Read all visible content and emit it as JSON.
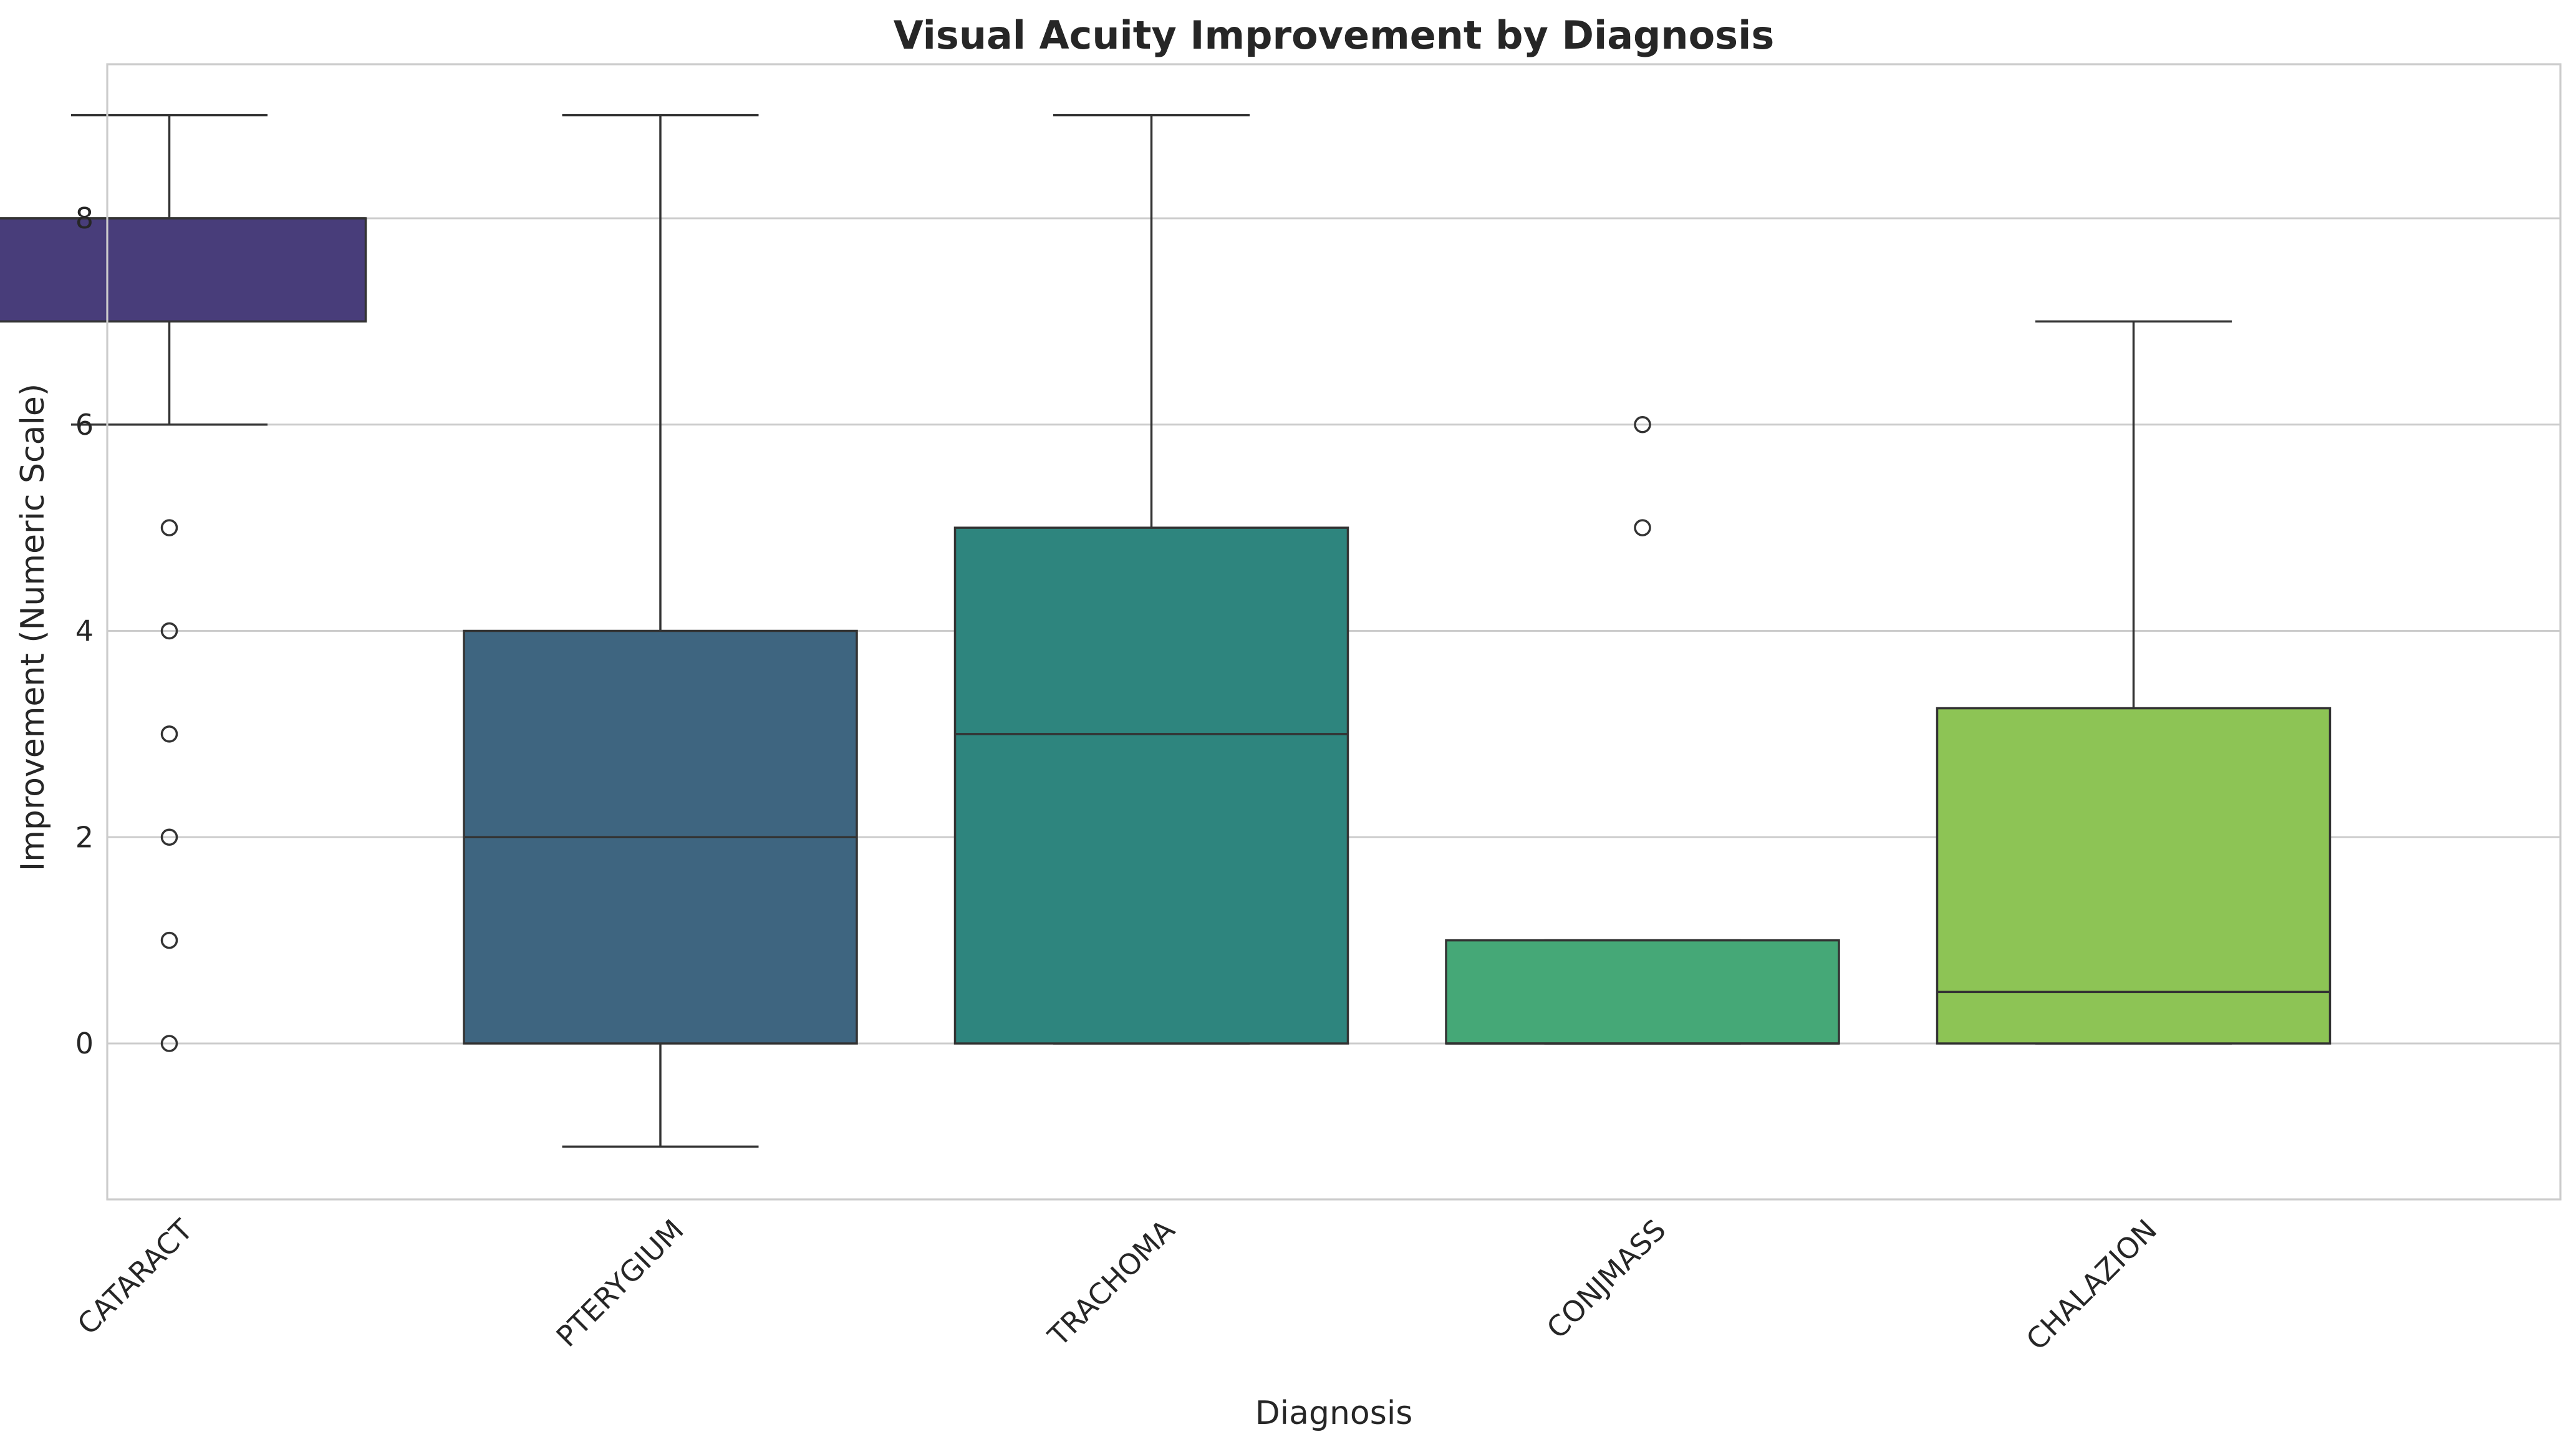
{
  "chart_data": {
    "type": "boxplot",
    "title": "Visual Acuity Improvement by Diagnosis",
    "xlabel": "Diagnosis",
    "ylabel": "Improvement (Numeric Scale)",
    "ylim": [
      -1.5,
      9.5
    ],
    "yticks": [
      0,
      2,
      4,
      6,
      8
    ],
    "grid": true,
    "categories": [
      "CATARACT",
      "PTERYGIUM",
      "TRACHOMA",
      "CONJMASS",
      "CHALAZION"
    ],
    "boxes": [
      {
        "category": "CATARACT",
        "color": "#483d7a",
        "whisker_low": 6,
        "q1": 7,
        "median": 8,
        "q3": 8,
        "whisker_high": 9,
        "outliers": [
          5,
          4,
          3,
          2,
          1,
          0
        ]
      },
      {
        "category": "PTERYGIUM",
        "color": "#3e6580",
        "whisker_low": -1,
        "q1": 0,
        "median": 2,
        "q3": 4,
        "whisker_high": 9,
        "outliers": []
      },
      {
        "category": "TRACHOMA",
        "color": "#2e857e",
        "whisker_low": 0,
        "q1": 0,
        "median": 3,
        "q3": 5,
        "whisker_high": 9,
        "outliers": []
      },
      {
        "category": "CONJMASS",
        "color": "#45a877",
        "whisker_low": 0,
        "q1": 0,
        "median": 0,
        "q3": 1,
        "whisker_high": 1,
        "outliers": [
          6,
          5
        ]
      },
      {
        "category": "CHALAZION",
        "color": "#8dc455",
        "whisker_low": 0,
        "q1": 0,
        "median": 0.5,
        "q3": 3.25,
        "whisker_high": 7,
        "outliers": []
      }
    ]
  }
}
